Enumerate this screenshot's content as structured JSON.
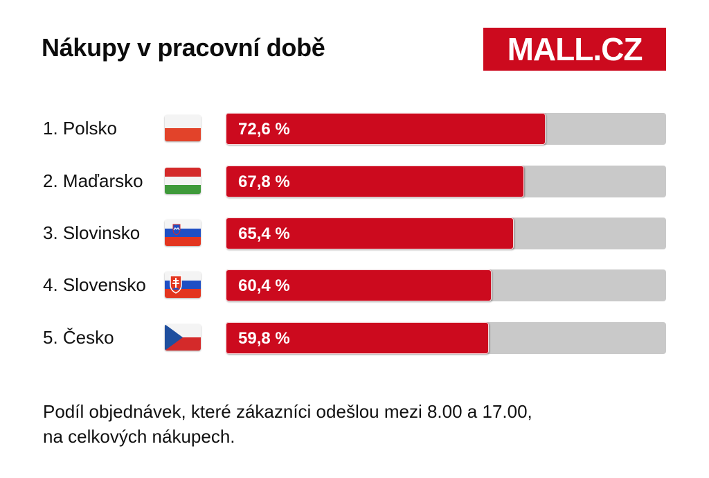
{
  "chart_data": {
    "type": "bar",
    "orientation": "horizontal",
    "title": "Nákupy v pracovní době",
    "categories": [
      "1. Polsko",
      "2. Maďarsko",
      "3. Slovinsko",
      "4. Slovensko",
      "5. Česko"
    ],
    "values": [
      72.6,
      67.8,
      65.4,
      60.4,
      59.8
    ],
    "value_labels": [
      "72,6 %",
      "67,8 %",
      "65,4 %",
      "60,4 %",
      "59,8 %"
    ],
    "flags": [
      "poland-flag-icon",
      "hungary-flag-icon",
      "slovenia-flag-icon",
      "slovakia-flag-icon",
      "czech-flag-icon"
    ],
    "xlim": [
      0,
      100
    ],
    "grid": false,
    "legend": "none",
    "bar_color": "#cc0a1e",
    "track_color": "#c9c9c9"
  },
  "logo": {
    "text": "MALL.CZ",
    "background": "#cc0a1e"
  },
  "caption": {
    "line1": "Podíl objednávek, které zákazníci odešlou mezi 8.00 a 17.00,",
    "line2": "na celkových nákupech."
  }
}
